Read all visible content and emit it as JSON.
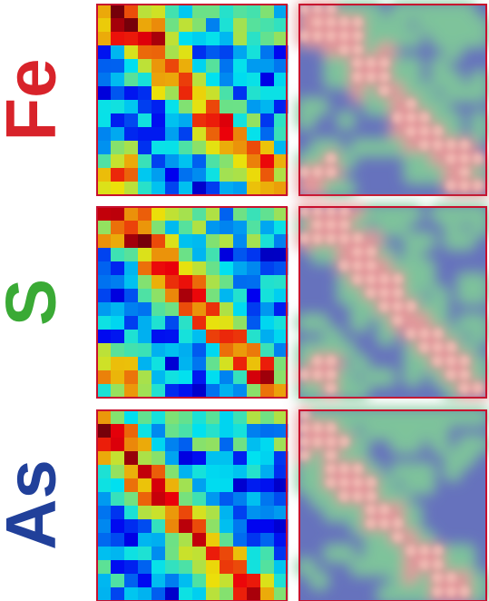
{
  "panels": [
    {
      "element": "Fe"
    },
    {
      "element": "S"
    },
    {
      "element": "As"
    }
  ]
}
